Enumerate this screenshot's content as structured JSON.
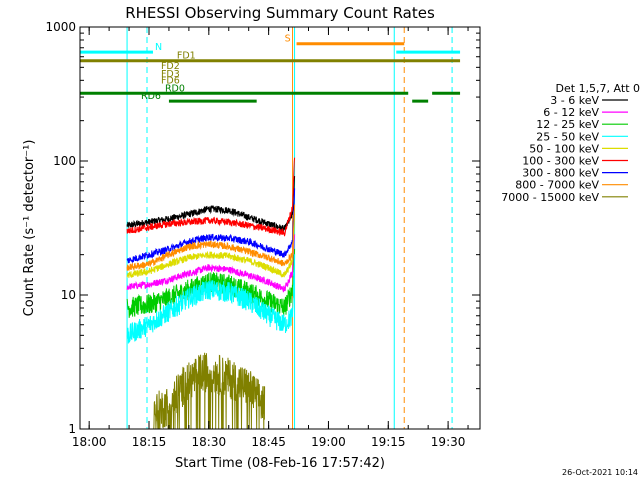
{
  "chart_data": {
    "type": "line",
    "title": "RHESSI Observing Summary Count Rates",
    "xlabel": "Start Time (08-Feb-16 17:57:42)",
    "ylabel": "Count Rate (s⁻¹ detector⁻¹)",
    "y_scale": "log",
    "xlim": [
      "17:57:42",
      "19:38:00"
    ],
    "ylim": [
      1,
      1000
    ],
    "grid": false,
    "legend_position": "right",
    "x_ticks": [
      "18:00",
      "18:15",
      "18:30",
      "18:45",
      "19:00",
      "19:15",
      "19:30"
    ],
    "y_ticks": [
      "1",
      "10",
      "100",
      "1000"
    ],
    "legend_header": "Det 1,5,7, Att 0",
    "timestamp": "26-Oct-2021 10:14",
    "series": [
      {
        "name": "3 - 6 keV",
        "color": "#000000",
        "x": [
          "18:09:30",
          "18:15",
          "18:20",
          "18:25",
          "18:30",
          "18:35",
          "18:40",
          "18:45",
          "18:49",
          "18:51",
          "18:51:30"
        ],
        "values": [
          33,
          35,
          37,
          40,
          44,
          43,
          38,
          34,
          31,
          40,
          75
        ]
      },
      {
        "name": "6 - 12 keV",
        "color": "#ff00ff",
        "x": [
          "18:09:30",
          "18:15",
          "18:20",
          "18:25",
          "18:30",
          "18:35",
          "18:40",
          "18:45",
          "18:49",
          "18:51",
          "18:51:30"
        ],
        "values": [
          11.5,
          12,
          13,
          14.5,
          16,
          15.5,
          14,
          12.5,
          11,
          15,
          30
        ]
      },
      {
        "name": "12 - 25 keV",
        "color": "#00cc00",
        "x": [
          "18:09:30",
          "18:15",
          "18:20",
          "18:25",
          "18:30",
          "18:35",
          "18:40",
          "18:45",
          "18:49",
          "18:51",
          "18:51:30"
        ],
        "values": [
          8,
          8.5,
          9.5,
          11,
          12.5,
          12,
          10.5,
          9,
          8,
          11,
          22
        ]
      },
      {
        "name": "25 - 50 keV",
        "color": "#00ffff",
        "x": [
          "18:09:30",
          "18:15",
          "18:20",
          "18:25",
          "18:30",
          "18:35",
          "18:40",
          "18:45",
          "18:49",
          "18:51",
          "18:51:30"
        ],
        "values": [
          5,
          6,
          7.5,
          9.5,
          11,
          10.5,
          9,
          7,
          6,
          7,
          18
        ]
      },
      {
        "name": "50 - 100 keV",
        "color": "#dddd00",
        "x": [
          "18:09:30",
          "18:15",
          "18:20",
          "18:25",
          "18:30",
          "18:35",
          "18:40",
          "18:45",
          "18:49",
          "18:51",
          "18:51:30"
        ],
        "values": [
          14,
          15,
          17,
          19,
          20,
          19.5,
          18,
          16,
          14,
          18,
          40
        ]
      },
      {
        "name": "100 - 300 keV",
        "color": "#ff0000",
        "x": [
          "18:09:30",
          "18:15",
          "18:20",
          "18:25",
          "18:30",
          "18:35",
          "18:40",
          "18:45",
          "18:49",
          "18:51",
          "18:51:30"
        ],
        "values": [
          30,
          32,
          34,
          35,
          36,
          35,
          33,
          31,
          29,
          45,
          110
        ]
      },
      {
        "name": "300 - 800 keV",
        "color": "#0000ff",
        "x": [
          "18:09:30",
          "18:15",
          "18:20",
          "18:25",
          "18:30",
          "18:35",
          "18:40",
          "18:45",
          "18:49",
          "18:51",
          "18:51:30"
        ],
        "values": [
          18,
          20,
          22,
          25,
          27,
          26.5,
          25,
          22,
          20,
          25,
          60
        ]
      },
      {
        "name": "800 - 7000 keV",
        "color": "#ff8c00",
        "x": [
          "18:09:30",
          "18:15",
          "18:20",
          "18:25",
          "18:30",
          "18:35",
          "18:40",
          "18:45",
          "18:49",
          "18:51",
          "18:51:30"
        ],
        "values": [
          16,
          17,
          20,
          23,
          24,
          23,
          21,
          19,
          17,
          20,
          45
        ]
      },
      {
        "name": "7000 - 15000 keV",
        "color": "#808000",
        "x": [
          "18:16",
          "18:20",
          "18:23",
          "18:25",
          "18:28",
          "18:30",
          "18:33",
          "18:35",
          "18:38",
          "18:40",
          "18:44"
        ],
        "values": [
          1.3,
          1.5,
          2,
          2.3,
          2.6,
          2.7,
          2.5,
          2.4,
          2.2,
          2.0,
          1.5
        ]
      }
    ],
    "flags": [
      {
        "label": "N",
        "color": "#00ffff",
        "y": 650,
        "segments": [
          [
            "17:57:42",
            "18:16"
          ],
          [
            "19:17",
            "19:33"
          ]
        ]
      },
      {
        "label": "S",
        "color": "#ff8c00",
        "y": 750,
        "segments": [
          [
            "18:52",
            "19:19"
          ]
        ]
      },
      {
        "label": "FD1",
        "color": "#808000",
        "y": 560,
        "segments": [
          [
            "17:57:42",
            "19:33"
          ]
        ]
      },
      {
        "label": "FD2",
        "color": "#808000",
        "y": 470,
        "segments": []
      },
      {
        "label": "FD3",
        "color": "#808000",
        "y": 410,
        "segments": []
      },
      {
        "label": "FD6",
        "color": "#808000",
        "y": 365,
        "segments": []
      },
      {
        "label": "RD0",
        "color": "#008000",
        "y": 320,
        "segments": [
          [
            "17:57:42",
            "19:20"
          ],
          [
            "19:26",
            "19:33"
          ]
        ]
      },
      {
        "label": "RD6",
        "color": "#008000",
        "y": 280,
        "segments": [
          [
            "18:20",
            "18:42"
          ],
          [
            "19:21",
            "19:25"
          ]
        ]
      }
    ],
    "vlines": [
      {
        "time": "17:57:42",
        "color": "#00ffff",
        "style": "solid"
      },
      {
        "time": "18:09:30",
        "color": "#00ffff",
        "style": "solid"
      },
      {
        "time": "18:14:30",
        "color": "#00ffff",
        "style": "dashed"
      },
      {
        "time": "18:51",
        "color": "#ff8c00",
        "style": "solid"
      },
      {
        "time": "18:51:30",
        "color": "#00ffff",
        "style": "solid"
      },
      {
        "time": "19:16:30",
        "color": "#00ffff",
        "style": "solid"
      },
      {
        "time": "19:19",
        "color": "#ff8c00",
        "style": "dashed"
      },
      {
        "time": "19:31",
        "color": "#00ffff",
        "style": "dashed"
      }
    ]
  }
}
